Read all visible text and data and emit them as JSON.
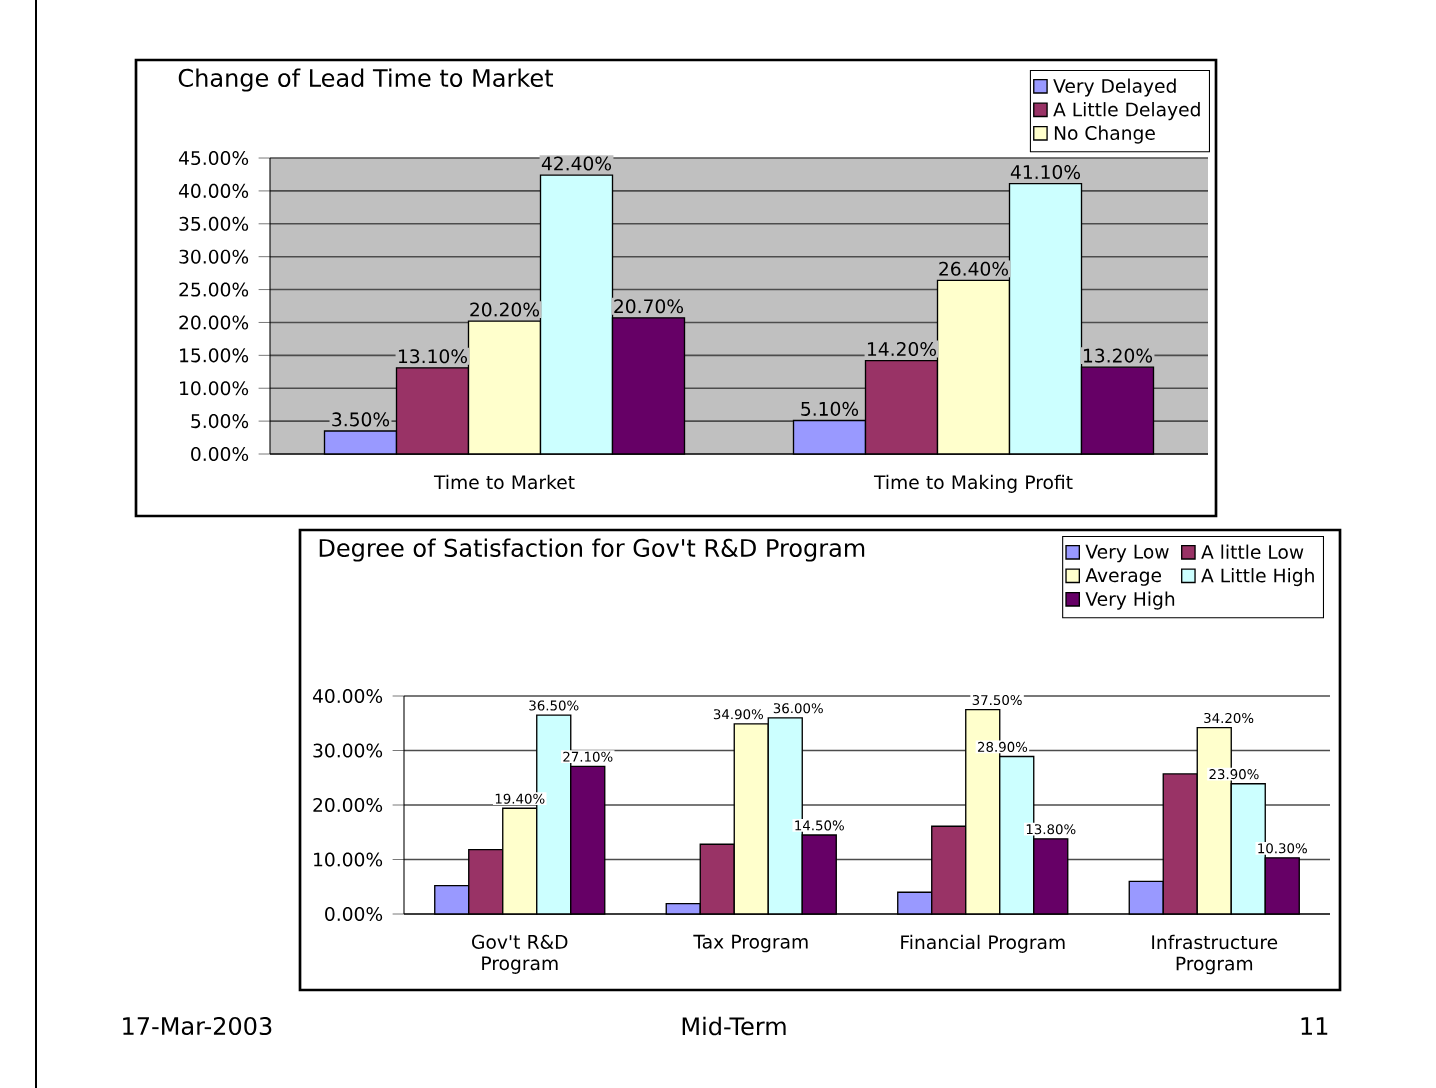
{
  "chart_data": [
    {
      "type": "bar",
      "title": "Change of Lead Time to Market",
      "categories": [
        "Time to Market",
        "Time to Making Profit"
      ],
      "series": [
        {
          "name": "Very Delayed",
          "color": "#9999ff",
          "values": [
            3.5,
            5.1
          ],
          "value_labels": [
            "3.50%",
            "5.10%"
          ]
        },
        {
          "name": "A Little Delayed",
          "color": "#993366",
          "values": [
            13.1,
            14.2
          ],
          "value_labels": [
            "13.10%",
            "14.20%"
          ]
        },
        {
          "name": "No Change",
          "color": "#ffffcc",
          "values": [
            20.2,
            26.4
          ],
          "value_labels": [
            "20.20%",
            "26.40%"
          ]
        },
        {
          "color": "#ccffff",
          "values": [
            42.4,
            41.1
          ],
          "value_labels": [
            "42.40%",
            "41.10%"
          ]
        },
        {
          "color": "#660066",
          "values": [
            20.7,
            13.2
          ],
          "value_labels": [
            "20.70%",
            "13.20%"
          ]
        }
      ],
      "ylim": [
        0,
        45
      ],
      "yticks": [
        {
          "value": 0,
          "label": "0.00%"
        },
        {
          "value": 5,
          "label": "5.00%"
        },
        {
          "value": 10,
          "label": "10.00%"
        },
        {
          "value": 15,
          "label": "15.00%"
        },
        {
          "value": 20,
          "label": "20.00%"
        },
        {
          "value": 25,
          "label": "25.00%"
        },
        {
          "value": 30,
          "label": "30.00%"
        },
        {
          "value": 35,
          "label": "35.00%"
        },
        {
          "value": 40,
          "label": "40.00%"
        },
        {
          "value": 45,
          "label": "45.00%"
        }
      ],
      "grid": "y",
      "legend": "top right"
    },
    {
      "type": "bar",
      "title": "Degree of Satisfaction for Gov't R&D Program",
      "categories": [
        "Gov't R&D Program",
        "Tax Program",
        "Financial Program",
        "Infrastructure Program"
      ],
      "series": [
        {
          "name": "Very Low",
          "color": "#9999ff",
          "values": [
            5.2,
            1.9,
            4.0,
            6.0
          ]
        },
        {
          "name": "A little Low",
          "color": "#993366",
          "values": [
            11.8,
            12.8,
            16.1,
            25.7
          ]
        },
        {
          "name": "Average",
          "color": "#ffffcc",
          "values": [
            19.4,
            34.9,
            37.5,
            34.2
          ],
          "value_labels": [
            "19.40%",
            "34.90%",
            "37.50%",
            "34.20%"
          ]
        },
        {
          "name": "A Little High",
          "color": "#ccffff",
          "values": [
            36.5,
            36.0,
            28.9,
            23.9
          ],
          "value_labels": [
            "36.50%",
            "36.00%",
            "28.90%",
            "23.90%"
          ]
        },
        {
          "name": "Very High",
          "color": "#660066",
          "values": [
            27.1,
            14.5,
            13.8,
            10.3
          ],
          "value_labels": [
            "27.10%",
            "14.50%",
            "13.80%",
            "10.30%"
          ]
        }
      ],
      "ylim": [
        0,
        40
      ],
      "yticks": [
        {
          "value": 0,
          "label": "0.00%"
        },
        {
          "value": 10,
          "label": "10.00%"
        },
        {
          "value": 20,
          "label": "20.00%"
        },
        {
          "value": 30,
          "label": "30.00%"
        },
        {
          "value": 40,
          "label": "40.00%"
        }
      ],
      "grid": "y",
      "legend": "top right",
      "annotations": [
        "17-Mar-2003",
        "Mid-Term",
        "11"
      ]
    }
  ]
}
